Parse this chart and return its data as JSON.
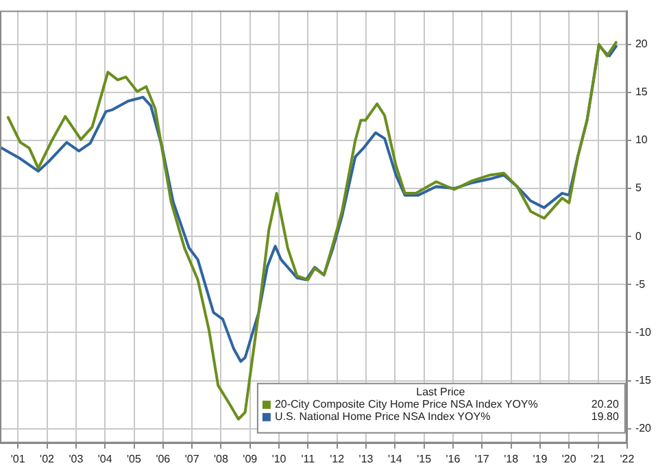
{
  "chart_data": {
    "type": "line",
    "legend_title": "Last Price",
    "legend": "bottom right",
    "grid": true,
    "xlim": [
      2000.38,
      2022.0
    ],
    "ylim": [
      -21.5,
      23.5
    ],
    "yticks": [
      -20,
      -15,
      -10,
      -5,
      0,
      5,
      10,
      15,
      20
    ],
    "xticks": [
      {
        "value": 2001,
        "label": "'01"
      },
      {
        "value": 2002,
        "label": "'02"
      },
      {
        "value": 2003,
        "label": "'03"
      },
      {
        "value": 2004,
        "label": "'04"
      },
      {
        "value": 2005,
        "label": "'05"
      },
      {
        "value": 2006,
        "label": "'06"
      },
      {
        "value": 2007,
        "label": "'07"
      },
      {
        "value": 2008,
        "label": "'08"
      },
      {
        "value": 2009,
        "label": "'09"
      },
      {
        "value": 2010,
        "label": "'10"
      },
      {
        "value": 2011,
        "label": "'11"
      },
      {
        "value": 2012,
        "label": "'12"
      },
      {
        "value": 2013,
        "label": "'13"
      },
      {
        "value": 2014,
        "label": "'14"
      },
      {
        "value": 2015,
        "label": "'15"
      },
      {
        "value": 2016,
        "label": "'16"
      },
      {
        "value": 2017,
        "label": "'17"
      },
      {
        "value": 2018,
        "label": "'18"
      },
      {
        "value": 2019,
        "label": "'19"
      },
      {
        "value": 2020,
        "label": "'20"
      },
      {
        "value": 2021,
        "label": "'21"
      },
      {
        "value": 2022,
        "label": "'22"
      }
    ],
    "annotations": [
      "20.20",
      "19.80"
    ],
    "series": [
      {
        "name": "20-City Composite City Home Price NSA Index YOY%",
        "color": "#6b8e1e",
        "x": [
          2000.66,
          2001.08,
          2001.39,
          2001.7,
          2002.17,
          2002.63,
          2003.17,
          2003.56,
          2004.1,
          2004.44,
          2004.72,
          2005.11,
          2005.42,
          2005.73,
          2006.28,
          2006.74,
          2007.2,
          2007.59,
          2007.9,
          2008.29,
          2008.6,
          2008.83,
          2009.3,
          2009.65,
          2009.92,
          2010.3,
          2010.62,
          2011.0,
          2011.23,
          2011.55,
          2011.86,
          2012.17,
          2012.63,
          2012.82,
          2012.98,
          2013.38,
          2013.64,
          2014.03,
          2014.34,
          2014.72,
          2015.42,
          2016.04,
          2016.66,
          2017.28,
          2017.75,
          2018.21,
          2018.68,
          2019.14,
          2019.76,
          2020.0,
          2020.3,
          2020.62,
          2020.85,
          2021.03,
          2021.31,
          2021.62
        ],
        "values": [
          12.4,
          9.8,
          9.2,
          7.1,
          10.0,
          12.5,
          10.1,
          11.4,
          17.1,
          16.3,
          16.6,
          15.1,
          15.6,
          13.3,
          3.6,
          -1.2,
          -4.5,
          -9.8,
          -15.5,
          -17.4,
          -19.0,
          -18.3,
          -7.9,
          0.7,
          4.5,
          -1.2,
          -4.1,
          -4.5,
          -3.3,
          -4.0,
          -0.8,
          2.6,
          10.0,
          12.1,
          12.1,
          13.8,
          12.6,
          7.4,
          4.5,
          4.5,
          5.7,
          4.9,
          5.8,
          6.4,
          6.6,
          5.2,
          2.6,
          1.9,
          4.0,
          3.5,
          8.3,
          12.1,
          16.4,
          20.0,
          18.8,
          20.2
        ]
      },
      {
        "name": "U.S. National Home Price NSA Index YOY%",
        "color": "#2f64a0",
        "x": [
          2000.38,
          2001.08,
          2001.7,
          2002.09,
          2002.68,
          2003.1,
          2003.49,
          2004.03,
          2004.26,
          2004.8,
          2005.31,
          2005.58,
          2005.97,
          2006.35,
          2006.9,
          2007.2,
          2007.74,
          2008.06,
          2008.44,
          2008.68,
          2008.83,
          2009.3,
          2009.6,
          2009.87,
          2010.07,
          2010.62,
          2010.93,
          2011.23,
          2011.55,
          2011.86,
          2012.17,
          2012.63,
          2012.94,
          2013.33,
          2013.64,
          2014.03,
          2014.34,
          2014.8,
          2015.42,
          2016.04,
          2016.66,
          2017.28,
          2017.75,
          2018.21,
          2018.68,
          2019.14,
          2019.76,
          2020.0,
          2020.3,
          2020.62,
          2020.85,
          2021.03,
          2021.23,
          2021.39,
          2021.62
        ],
        "values": [
          9.3,
          8.1,
          6.8,
          7.9,
          9.8,
          8.9,
          9.7,
          13.0,
          13.2,
          14.1,
          14.5,
          13.6,
          9.3,
          3.6,
          -1.2,
          -2.4,
          -7.9,
          -8.6,
          -11.7,
          -13.0,
          -12.6,
          -7.9,
          -3.1,
          -1.0,
          -2.4,
          -4.3,
          -4.5,
          -3.2,
          -4.0,
          -1.2,
          2.1,
          8.3,
          9.3,
          10.8,
          10.2,
          6.4,
          4.3,
          4.3,
          5.2,
          5.0,
          5.6,
          6.0,
          6.4,
          5.2,
          3.7,
          3.0,
          4.5,
          4.3,
          8.3,
          12.1,
          16.4,
          19.9,
          19.2,
          18.8,
          19.8
        ]
      }
    ]
  }
}
